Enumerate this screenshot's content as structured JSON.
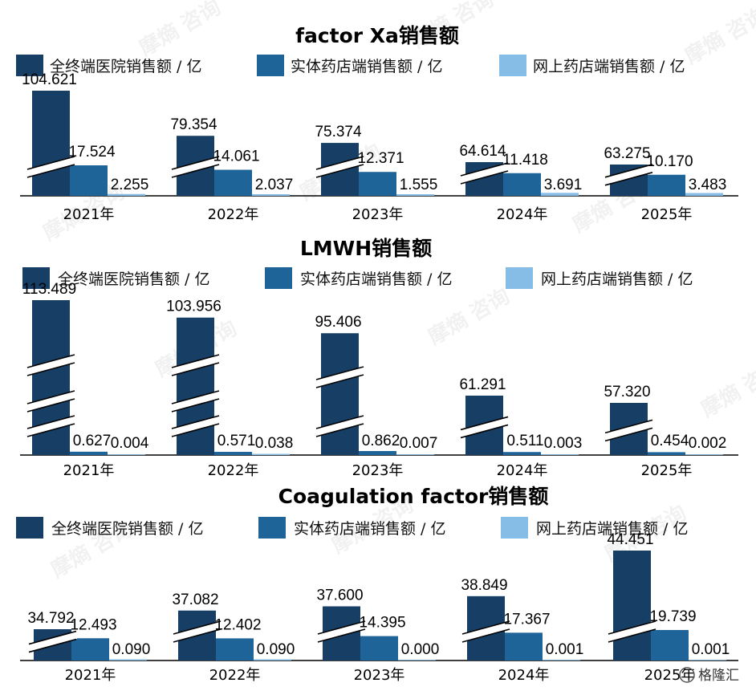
{
  "colors": {
    "hospital": "#173f66",
    "pharmacy": "#1f6499",
    "online": "#86bde6",
    "axis": "#000000"
  },
  "watermark": {
    "text": "摩熵",
    "badge": "咨询"
  },
  "corner_logo": "格隆汇",
  "chart_data": [
    {
      "type": "bar",
      "title": "factor Xa销售额",
      "categories": [
        "2021年",
        "2022年",
        "2023年",
        "2024年",
        "2025年"
      ],
      "series": [
        {
          "name": "全终端医院销售额 / 亿",
          "values": [
            104.621,
            79.354,
            75.374,
            64.614,
            63.275
          ]
        },
        {
          "name": "实体药店端销售额 / 亿",
          "values": [
            17.524,
            14.061,
            12.371,
            11.418,
            10.17
          ]
        },
        {
          "name": "网上药店端销售额 / 亿",
          "values": [
            2.255,
            2.037,
            1.555,
            3.691,
            3.483
          ]
        }
      ],
      "value_labels": [
        [
          "104.621",
          "79.354",
          "75.374",
          "64.614",
          "63.275"
        ],
        [
          "17.524",
          "14.061",
          "12.371",
          "11.418",
          "10.170"
        ],
        [
          "2.255",
          "2.037",
          "1.555",
          "3.691",
          "3.483"
        ]
      ],
      "axis_break": true,
      "legend": "top"
    },
    {
      "type": "bar",
      "title": "LMWH销售额",
      "categories": [
        "2021年",
        "2022年",
        "2023年",
        "2024年",
        "2025年"
      ],
      "series": [
        {
          "name": "全终端医院销售额 / 亿",
          "values": [
            113.489,
            103.956,
            95.406,
            61.291,
            57.32
          ]
        },
        {
          "name": "实体药店端销售额 / 亿",
          "values": [
            0.627,
            0.571,
            0.862,
            0.511,
            0.454
          ]
        },
        {
          "name": "网上药店端销售额 / 亿",
          "values": [
            0.004,
            0.038,
            0.007,
            0.003,
            0.002
          ]
        }
      ],
      "value_labels": [
        [
          "113.489",
          "103.956",
          "95.406",
          "61.291",
          "57.320"
        ],
        [
          "0.627",
          "0.571",
          "0.862",
          "0.511",
          "0.454"
        ],
        [
          "0.004",
          "0.038",
          "0.007",
          "0.003",
          "0.002"
        ]
      ],
      "axis_break": true,
      "legend": "top"
    },
    {
      "type": "bar",
      "title": "Coagulation factor销售额",
      "categories": [
        "2021年",
        "2022年",
        "2023年",
        "2024年",
        "2025年"
      ],
      "series": [
        {
          "name": "全终端医院销售额 / 亿",
          "values": [
            34.792,
            37.082,
            37.6,
            38.849,
            44.451
          ]
        },
        {
          "name": "实体药店端销售额 / 亿",
          "values": [
            12.493,
            12.402,
            14.395,
            17.367,
            19.739
          ]
        },
        {
          "name": "网上药店端销售额 / 亿",
          "values": [
            0.09,
            0.09,
            0.0,
            0.001,
            0.001
          ]
        }
      ],
      "value_labels": [
        [
          "34.792",
          "37.082",
          "37.600",
          "38.849",
          "44.451"
        ],
        [
          "12.493",
          "12.402",
          "14.395",
          "17.367",
          "19.739"
        ],
        [
          "0.090",
          "0.090",
          "0.000",
          "0.001",
          "0.001"
        ]
      ],
      "axis_break": true,
      "legend": "top"
    }
  ]
}
